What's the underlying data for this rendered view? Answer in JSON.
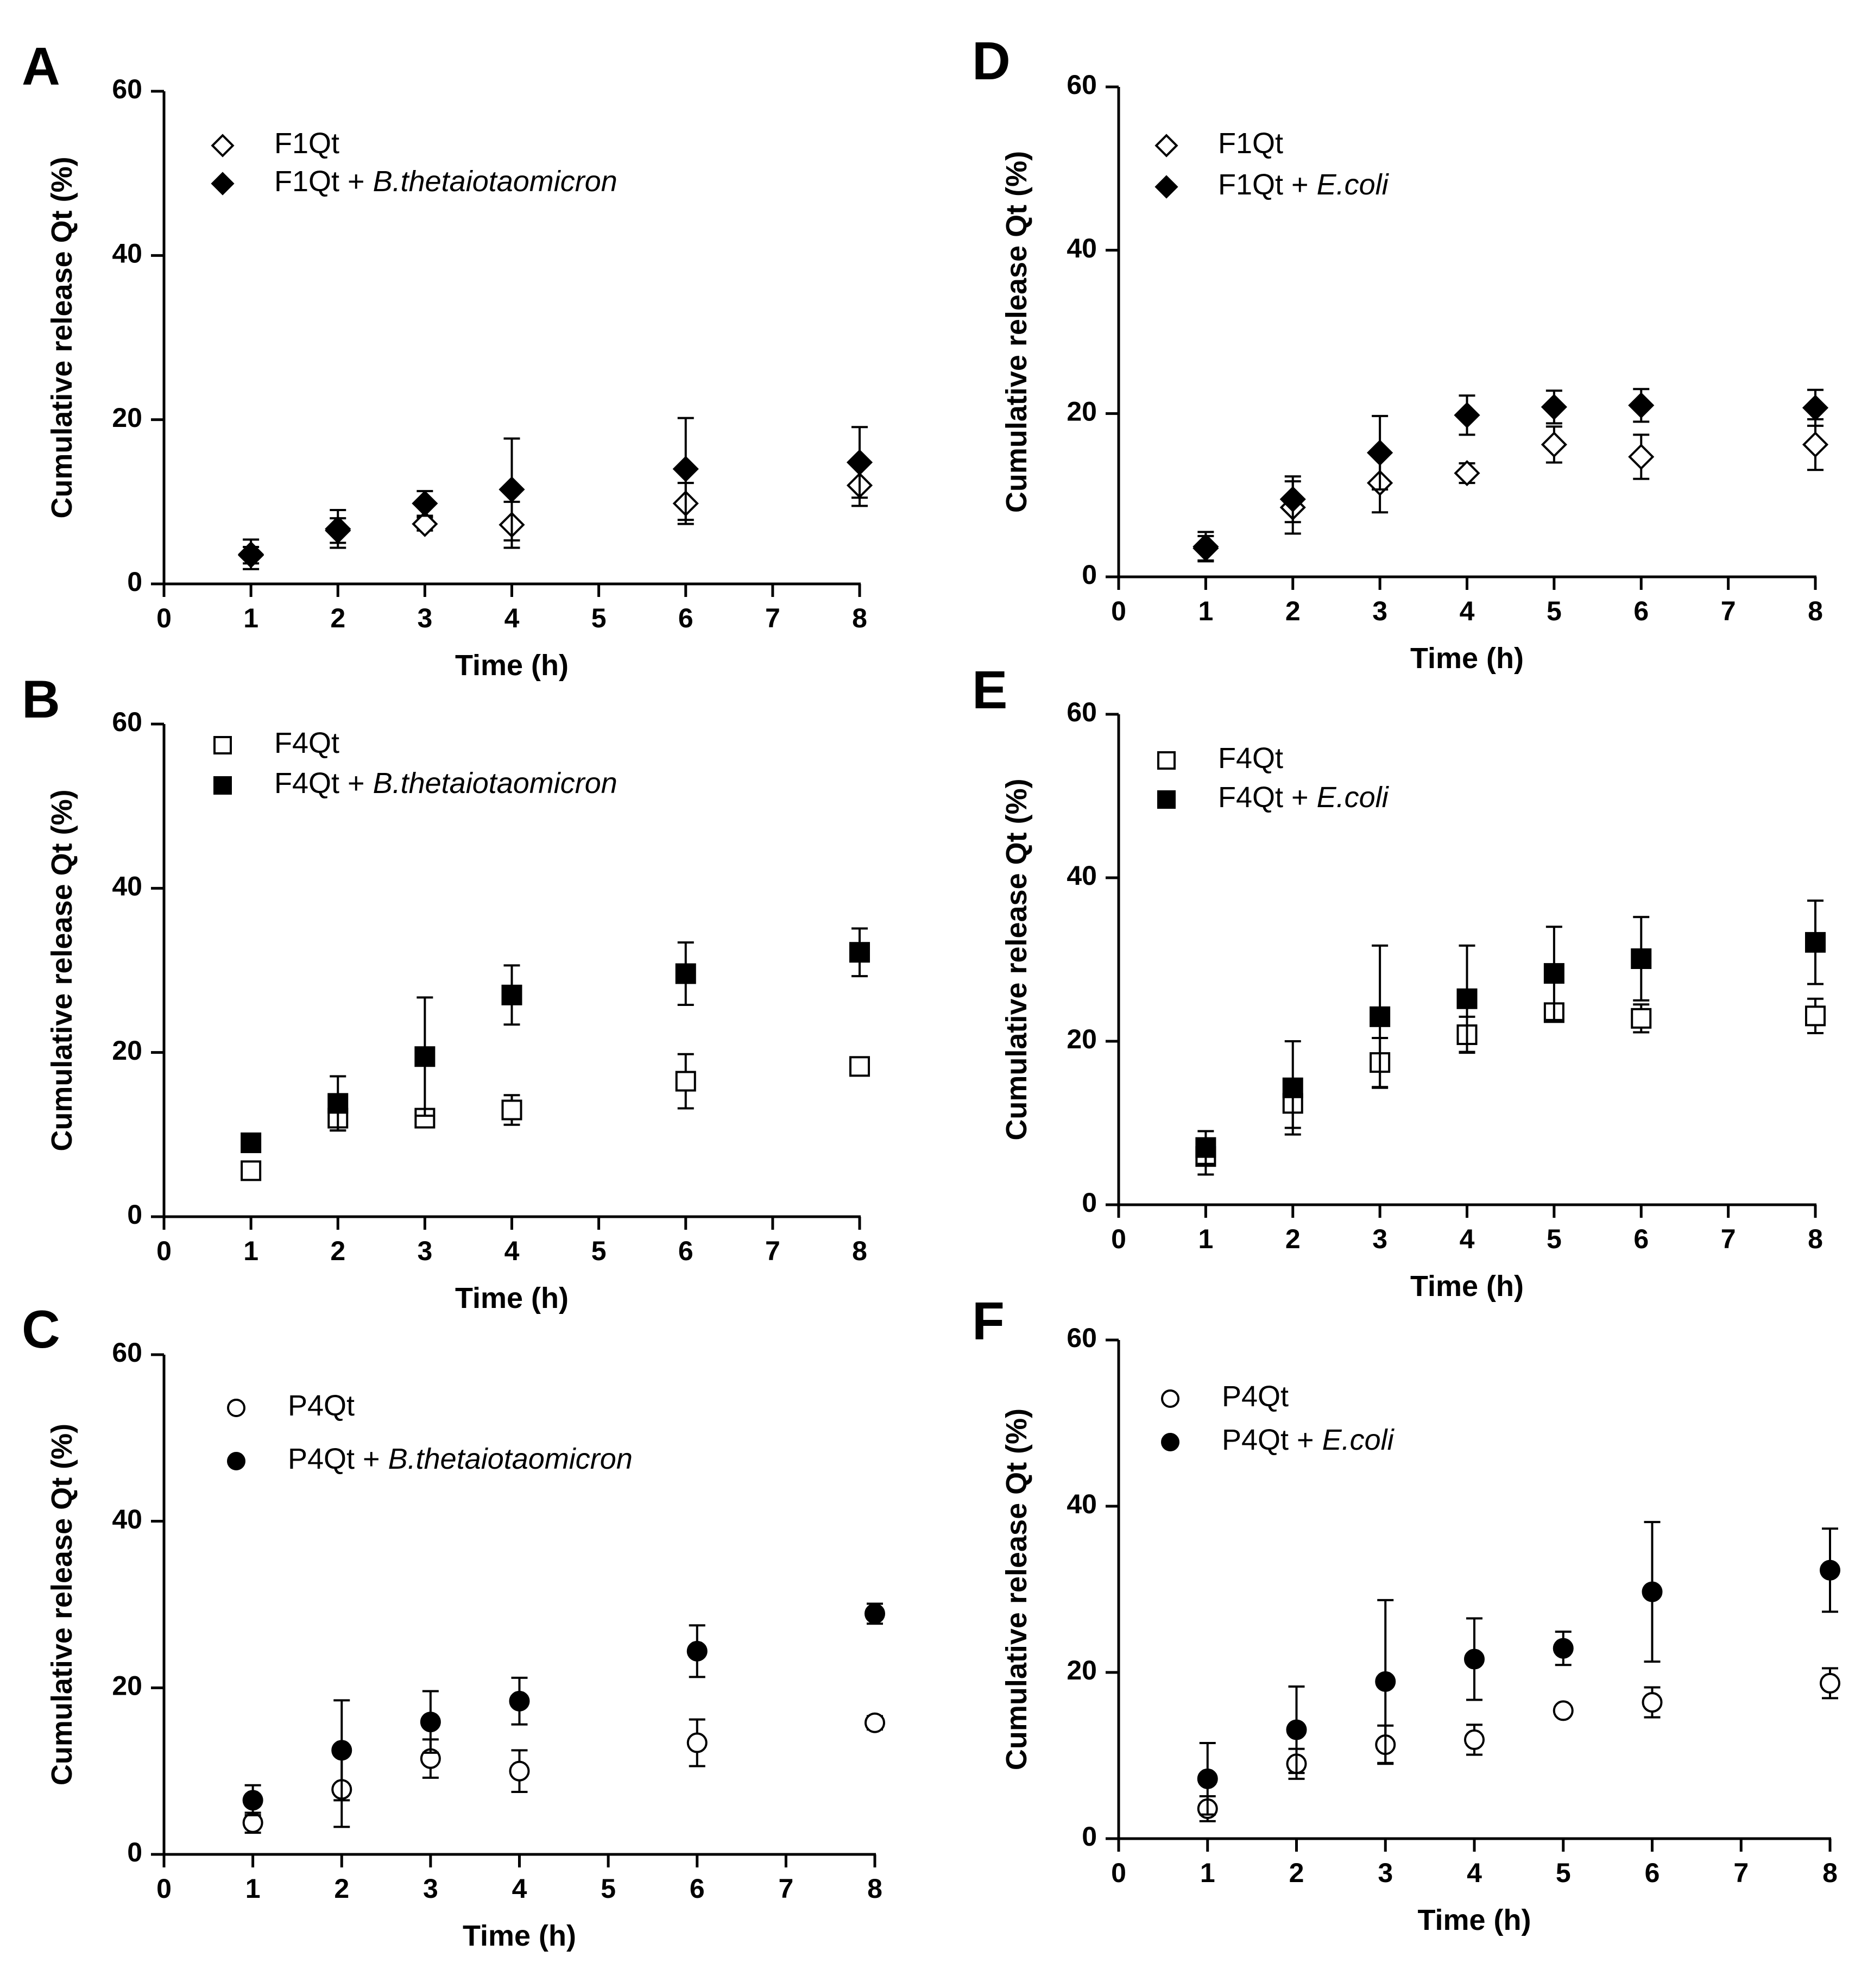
{
  "chart_data": [
    {
      "type": "scatter",
      "panel": "A",
      "xlabel": "Time (h)",
      "ylabel": "Cumulative release Qt (%)",
      "xlim": [
        0,
        8
      ],
      "ylim": [
        0,
        60
      ],
      "xticks": [
        0,
        1,
        2,
        3,
        4,
        5,
        6,
        7,
        8
      ],
      "yticks": [
        0,
        20,
        40,
        60
      ],
      "grid": false,
      "legend_position": "top-left",
      "series": [
        {
          "name": "F1Qt",
          "name_suffix": "",
          "marker": "diamond",
          "filled": false,
          "x": [
            1,
            2,
            3,
            4,
            6,
            8
          ],
          "y": [
            3.5,
            6.5,
            7.3,
            7.2,
            9.8,
            12.0
          ],
          "err": [
            1.0,
            1.5,
            0.8,
            2.8,
            2.5,
            2.5
          ]
        },
        {
          "name": "F1Qt + ",
          "name_suffix": "B.thetaiotaomicron",
          "marker": "diamond",
          "filled": true,
          "x": [
            1,
            2,
            3,
            4,
            6,
            8
          ],
          "y": [
            3.6,
            6.7,
            9.8,
            11.5,
            14.0,
            14.8
          ],
          "err": [
            1.8,
            2.3,
            1.5,
            6.2,
            6.2,
            4.3
          ]
        }
      ]
    },
    {
      "type": "scatter",
      "panel": "B",
      "xlabel": "Time (h)",
      "ylabel": "Cumulative release Qt (%)",
      "xlim": [
        0,
        8
      ],
      "ylim": [
        0,
        60
      ],
      "xticks": [
        0,
        1,
        2,
        3,
        4,
        5,
        6,
        7,
        8
      ],
      "yticks": [
        0,
        20,
        40,
        60
      ],
      "grid": false,
      "legend_position": "top-left",
      "series": [
        {
          "name": "F4Qt",
          "name_suffix": "",
          "marker": "square",
          "filled": false,
          "x": [
            1,
            2,
            3,
            4,
            6,
            8
          ],
          "y": [
            5.6,
            12.0,
            12.0,
            13.0,
            16.5,
            18.3
          ],
          "err": [
            0.5,
            1.5,
            1.0,
            1.8,
            3.3,
            0.8
          ]
        },
        {
          "name": "F4Qt + ",
          "name_suffix": "B.thetaiotaomicron",
          "marker": "square",
          "filled": true,
          "x": [
            1,
            2,
            3,
            4,
            6,
            8
          ],
          "y": [
            9.0,
            13.8,
            19.5,
            27.0,
            29.6,
            32.2
          ],
          "err": [
            0.8,
            3.3,
            7.2,
            3.6,
            3.8,
            2.9
          ]
        }
      ]
    },
    {
      "type": "scatter",
      "panel": "C",
      "xlabel": "Time (h)",
      "ylabel": "Cumulative release Qt (%)",
      "xlim": [
        0,
        8
      ],
      "ylim": [
        0,
        60
      ],
      "xticks": [
        0,
        1,
        2,
        3,
        4,
        5,
        6,
        7,
        8
      ],
      "yticks": [
        0,
        20,
        40,
        60
      ],
      "grid": false,
      "legend_position": "top-left",
      "series": [
        {
          "name": "P4Qt",
          "name_suffix": "",
          "marker": "circle",
          "filled": false,
          "x": [
            1,
            2,
            3,
            4,
            6,
            8
          ],
          "y": [
            3.8,
            7.8,
            11.5,
            10.0,
            13.4,
            15.8
          ],
          "err": [
            1.2,
            4.5,
            2.3,
            2.5,
            2.8,
            0.8
          ]
        },
        {
          "name": "P4Qt + ",
          "name_suffix": "B.thetaiotaomicron",
          "marker": "circle",
          "filled": true,
          "x": [
            1,
            2,
            3,
            4,
            6,
            8
          ],
          "y": [
            6.5,
            12.5,
            15.9,
            18.4,
            24.4,
            28.9
          ],
          "err": [
            1.8,
            6.0,
            3.7,
            2.8,
            3.1,
            1.2
          ]
        }
      ]
    },
    {
      "type": "scatter",
      "panel": "D",
      "xlabel": "Time (h)",
      "ylabel": "Cumulative release Qt (%)",
      "xlim": [
        0,
        8
      ],
      "ylim": [
        0,
        60
      ],
      "xticks": [
        0,
        1,
        2,
        3,
        4,
        5,
        6,
        7,
        8
      ],
      "yticks": [
        0,
        20,
        40,
        60
      ],
      "grid": false,
      "legend_position": "top-left",
      "series": [
        {
          "name": "F1Qt",
          "name_suffix": "",
          "marker": "diamond",
          "filled": false,
          "x": [
            1,
            2,
            3,
            4,
            5,
            6,
            8
          ],
          "y": [
            3.5,
            8.5,
            11.5,
            12.7,
            16.2,
            14.7,
            16.2
          ],
          "err": [
            1.5,
            3.2,
            3.6,
            1.2,
            2.2,
            2.7,
            3.1
          ]
        },
        {
          "name": "F1Qt + ",
          "name_suffix": "E.coli",
          "marker": "diamond",
          "filled": true,
          "x": [
            1,
            2,
            3,
            4,
            5,
            6,
            8
          ],
          "y": [
            3.7,
            9.5,
            15.2,
            19.8,
            20.8,
            21.0,
            20.7
          ],
          "err": [
            1.8,
            2.8,
            4.5,
            2.4,
            2.0,
            2.0,
            2.2
          ]
        }
      ]
    },
    {
      "type": "scatter",
      "panel": "E",
      "xlabel": "Time (h)",
      "ylabel": "Cumulative release Qt (%)",
      "xlim": [
        0,
        8
      ],
      "ylim": [
        0,
        60
      ],
      "xticks": [
        0,
        1,
        2,
        3,
        4,
        5,
        6,
        7,
        8
      ],
      "yticks": [
        0,
        20,
        40,
        60
      ],
      "grid": false,
      "legend_position": "top-left",
      "series": [
        {
          "name": "F4Qt",
          "name_suffix": "",
          "marker": "square",
          "filled": false,
          "x": [
            1,
            2,
            3,
            4,
            5,
            6,
            8
          ],
          "y": [
            5.9,
            12.4,
            17.4,
            20.8,
            23.5,
            22.8,
            23.1
          ],
          "err": [
            2.2,
            3.0,
            3.0,
            2.2,
            1.0,
            1.7,
            2.1
          ]
        },
        {
          "name": "F4Qt + ",
          "name_suffix": "E.coli",
          "marker": "square",
          "filled": true,
          "x": [
            1,
            2,
            3,
            4,
            5,
            6,
            8
          ],
          "y": [
            7.0,
            14.3,
            23.0,
            25.2,
            28.3,
            30.1,
            32.1
          ],
          "err": [
            2.0,
            5.7,
            8.7,
            6.5,
            5.7,
            5.1,
            5.1
          ]
        }
      ]
    },
    {
      "type": "scatter",
      "panel": "F",
      "xlabel": "Time (h)",
      "ylabel": "Cumulative release Qt (%)",
      "xlim": [
        0,
        8
      ],
      "ylim": [
        0,
        60
      ],
      "xticks": [
        0,
        1,
        2,
        3,
        4,
        5,
        6,
        7,
        8
      ],
      "yticks": [
        0,
        20,
        40,
        60
      ],
      "grid": false,
      "legend_position": "top-left",
      "series": [
        {
          "name": "P4Qt",
          "name_suffix": "",
          "marker": "circle",
          "filled": false,
          "x": [
            1,
            2,
            3,
            4,
            5,
            6,
            8
          ],
          "y": [
            3.6,
            9.0,
            11.3,
            11.9,
            15.4,
            16.4,
            18.7
          ],
          "err": [
            1.5,
            1.8,
            2.3,
            1.8,
            0.5,
            1.8,
            1.8
          ]
        },
        {
          "name": "P4Qt + ",
          "name_suffix": "E.coli",
          "marker": "circle",
          "filled": true,
          "x": [
            1,
            2,
            3,
            4,
            5,
            6,
            8
          ],
          "y": [
            7.2,
            13.1,
            18.9,
            21.6,
            22.9,
            29.7,
            32.3
          ],
          "err": [
            4.3,
            5.2,
            9.8,
            4.9,
            2.0,
            8.4,
            5.0
          ]
        }
      ]
    }
  ]
}
